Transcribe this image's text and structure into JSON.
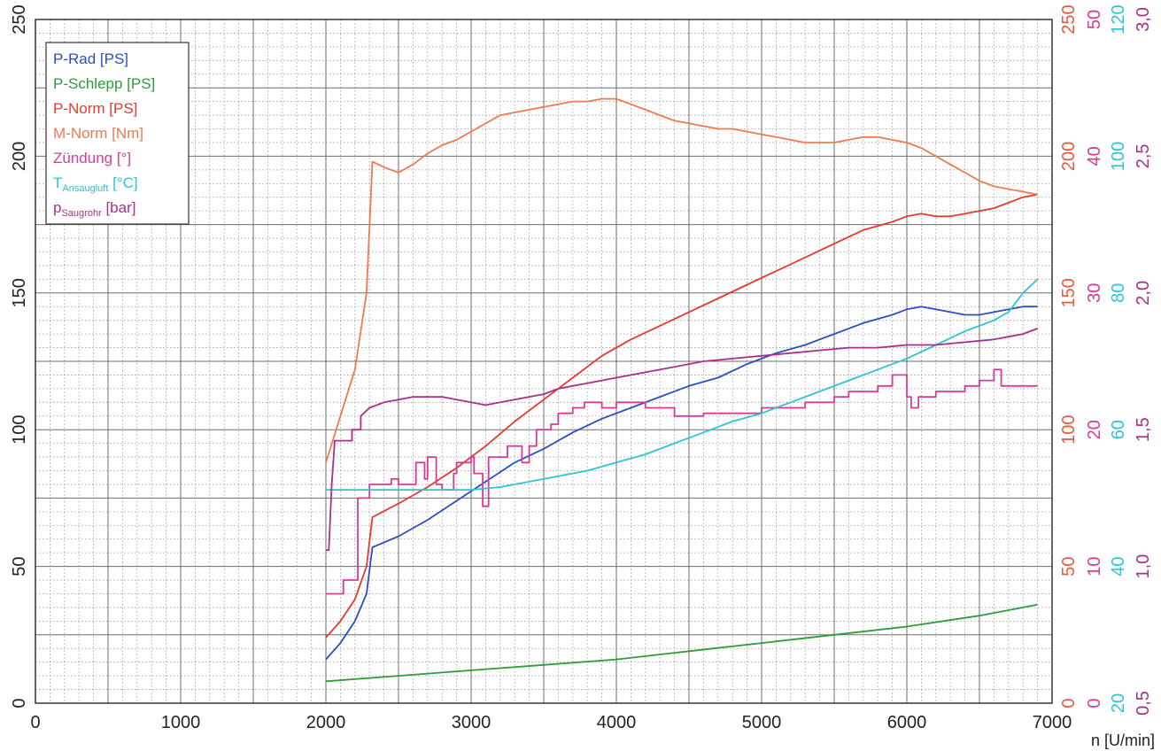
{
  "chart_data": {
    "type": "line",
    "xlabel": "n [U/min]",
    "xlim": [
      0,
      7000
    ],
    "x_ticks": [
      "0",
      "1000",
      "2000",
      "3000",
      "4000",
      "5000",
      "6000",
      "7000"
    ],
    "ylim": [
      0,
      250
    ],
    "y_ticks": [
      "0",
      "50",
      "100",
      "150",
      "200",
      "250"
    ],
    "grid": true,
    "legend_position": "top-left",
    "right_axes": [
      {
        "color": "#e8583a",
        "ticks": [
          "0",
          "50",
          "100",
          "150",
          "200",
          "250"
        ]
      },
      {
        "color": "#d93a9a",
        "ticks": [
          "0",
          "10",
          "20",
          "30",
          "40",
          "50"
        ]
      },
      {
        "color": "#2ec4d6",
        "ticks": [
          "20",
          "40",
          "60",
          "80",
          "100",
          "120"
        ]
      },
      {
        "color": "#a8308c",
        "ticks": [
          "0,5",
          "1,0",
          "1,5",
          "2,0",
          "2,5",
          "3,0"
        ]
      }
    ],
    "series": [
      {
        "name": "P-Rad [PS]",
        "color": "#2a4fc2",
        "x": [
          2000,
          2100,
          2200,
          2280,
          2320,
          2500,
          2700,
          2900,
          3100,
          3300,
          3500,
          3700,
          3900,
          4100,
          4300,
          4500,
          4700,
          4900,
          5100,
          5300,
          5500,
          5700,
          5900,
          6000,
          6100,
          6200,
          6300,
          6400,
          6500,
          6600,
          6700,
          6800,
          6900
        ],
        "y": [
          16,
          22,
          30,
          40,
          57,
          61,
          67,
          74,
          81,
          88,
          93,
          99,
          104,
          108,
          112,
          116,
          119,
          124,
          128,
          131,
          135,
          139,
          142,
          144,
          145,
          144,
          143,
          142,
          142,
          143,
          144,
          145,
          145
        ]
      },
      {
        "name": "P-Schlepp [PS]",
        "color": "#2f9b3a",
        "x": [
          2000,
          2500,
          3000,
          3500,
          4000,
          4500,
          5000,
          5500,
          6000,
          6500,
          6900
        ],
        "y": [
          8,
          10,
          12,
          14,
          16,
          19,
          22,
          25,
          28,
          32,
          36
        ]
      },
      {
        "name": "P-Norm [PS]",
        "color": "#e43b2c",
        "x": [
          2000,
          2100,
          2200,
          2280,
          2320,
          2500,
          2700,
          2900,
          3100,
          3300,
          3500,
          3700,
          3900,
          4100,
          4300,
          4500,
          4700,
          4900,
          5100,
          5300,
          5500,
          5700,
          5900,
          6000,
          6100,
          6200,
          6300,
          6400,
          6500,
          6600,
          6700,
          6800,
          6900
        ],
        "y": [
          24,
          30,
          38,
          50,
          68,
          73,
          79,
          86,
          94,
          103,
          111,
          119,
          127,
          133,
          138,
          143,
          148,
          153,
          158,
          163,
          168,
          173,
          176,
          178,
          179,
          178,
          178,
          179,
          180,
          181,
          183,
          185,
          186
        ]
      },
      {
        "name": "M-Norm [Nm]",
        "color": "#ee7a4e",
        "x": [
          2000,
          2100,
          2200,
          2280,
          2320,
          2400,
          2500,
          2600,
          2700,
          2800,
          2900,
          3000,
          3100,
          3200,
          3300,
          3400,
          3500,
          3600,
          3700,
          3800,
          3900,
          4000,
          4100,
          4200,
          4300,
          4400,
          4500,
          4600,
          4700,
          4800,
          4900,
          5000,
          5100,
          5200,
          5300,
          5400,
          5500,
          5600,
          5700,
          5800,
          5900,
          6000,
          6100,
          6200,
          6300,
          6400,
          6500,
          6600,
          6700,
          6800,
          6900
        ],
        "y": [
          88,
          105,
          122,
          150,
          198,
          196,
          194,
          197,
          201,
          204,
          206,
          209,
          212,
          215,
          216,
          217,
          218,
          219,
          220,
          220,
          221,
          221,
          219,
          217,
          215,
          213,
          212,
          211,
          210,
          210,
          209,
          208,
          207,
          206,
          205,
          205,
          205,
          206,
          207,
          207,
          206,
          205,
          203,
          200,
          197,
          194,
          191,
          189,
          188,
          187,
          186
        ]
      },
      {
        "name": "Zündung [°]",
        "color": "#d93a9a",
        "x": [
          2000,
          2120,
          2120,
          2220,
          2220,
          2300,
          2300,
          2450,
          2450,
          2500,
          2500,
          2620,
          2620,
          2680,
          2680,
          2700,
          2700,
          2760,
          2760,
          2800,
          2800,
          2880,
          2880,
          2900,
          2900,
          3000,
          3000,
          3020,
          3020,
          3080,
          3080,
          3120,
          3120,
          3250,
          3250,
          3350,
          3350,
          3400,
          3400,
          3450,
          3450,
          3550,
          3550,
          3600,
          3600,
          3700,
          3700,
          3780,
          3780,
          3900,
          3900,
          4000,
          4000,
          4200,
          4200,
          4400,
          4400,
          4600,
          4600,
          5000,
          5000,
          5300,
          5300,
          5500,
          5500,
          5600,
          5600,
          5800,
          5800,
          5900,
          5900,
          6000,
          6000,
          6030,
          6030,
          6080,
          6080,
          6200,
          6200,
          6400,
          6400,
          6500,
          6500,
          6600,
          6600,
          6650,
          6650,
          6900
        ],
        "y": [
          40,
          40,
          45,
          45,
          75,
          75,
          80,
          80,
          82,
          82,
          80,
          80,
          88,
          88,
          82,
          82,
          90,
          90,
          80,
          80,
          78,
          78,
          84,
          84,
          88,
          88,
          90,
          90,
          84,
          84,
          72,
          72,
          90,
          90,
          94,
          94,
          88,
          88,
          94,
          94,
          100,
          100,
          102,
          102,
          106,
          106,
          108,
          108,
          110,
          110,
          108,
          108,
          110,
          110,
          108,
          108,
          105,
          105,
          106,
          106,
          108,
          108,
          110,
          110,
          112,
          112,
          114,
          114,
          116,
          116,
          120,
          120,
          112,
          112,
          108,
          108,
          112,
          112,
          114,
          114,
          116,
          116,
          118,
          118,
          122,
          122,
          116,
          116
        ]
      },
      {
        "name": "TAnsaugluft [°C]",
        "color": "#2ec4d6",
        "x": [
          2000,
          2500,
          3000,
          3200,
          3400,
          3600,
          3800,
          4000,
          4200,
          4400,
          4600,
          4800,
          5000,
          5200,
          5400,
          5600,
          5800,
          6000,
          6200,
          6400,
          6600,
          6700,
          6800,
          6900
        ],
        "y": [
          78,
          78,
          78,
          79,
          81,
          83,
          85,
          88,
          91,
          95,
          99,
          103,
          106,
          110,
          114,
          118,
          122,
          126,
          131,
          136,
          140,
          143,
          150,
          155
        ]
      },
      {
        "name": "pSaugrohr [bar]",
        "color": "#a8308c",
        "x": [
          2000,
          2020,
          2040,
          2060,
          2060,
          2180,
          2180,
          2240,
          2240,
          2300,
          2400,
          2500,
          2600,
          2700,
          2800,
          2900,
          3000,
          3100,
          3200,
          3300,
          3400,
          3500,
          3600,
          3700,
          3800,
          3900,
          4000,
          4200,
          4400,
          4600,
          4800,
          5000,
          5200,
          5400,
          5600,
          5800,
          6000,
          6200,
          6400,
          6600,
          6800,
          6900
        ],
        "y": [
          56,
          56,
          80,
          95,
          96,
          96,
          100,
          100,
          105,
          108,
          110,
          111,
          112,
          112,
          112,
          111,
          110,
          109,
          110,
          111,
          112,
          113,
          115,
          116,
          117,
          118,
          119,
          121,
          123,
          125,
          126,
          127,
          128,
          129,
          130,
          130,
          131,
          131,
          132,
          133,
          135,
          137
        ]
      }
    ],
    "legend": [
      {
        "main": "P-Rad [PS]",
        "sub": "",
        "tail": "",
        "color": "#2a4fc2"
      },
      {
        "main": "P-Schlepp [PS]",
        "sub": "",
        "tail": "",
        "color": "#2f9b3a"
      },
      {
        "main": "P-Norm [PS]",
        "sub": "",
        "tail": "",
        "color": "#e43b2c"
      },
      {
        "main": "M-Norm [Nm]",
        "sub": "",
        "tail": "",
        "color": "#ee7a4e"
      },
      {
        "main": "Zündung [°]",
        "sub": "",
        "tail": "",
        "color": "#d93a9a"
      },
      {
        "main": "T",
        "sub": "Ansaugluft",
        "tail": " [°C]",
        "color": "#2ec4d6"
      },
      {
        "main": "p",
        "sub": "Saugrohr",
        "tail": " [bar]",
        "color": "#a8308c"
      }
    ]
  }
}
